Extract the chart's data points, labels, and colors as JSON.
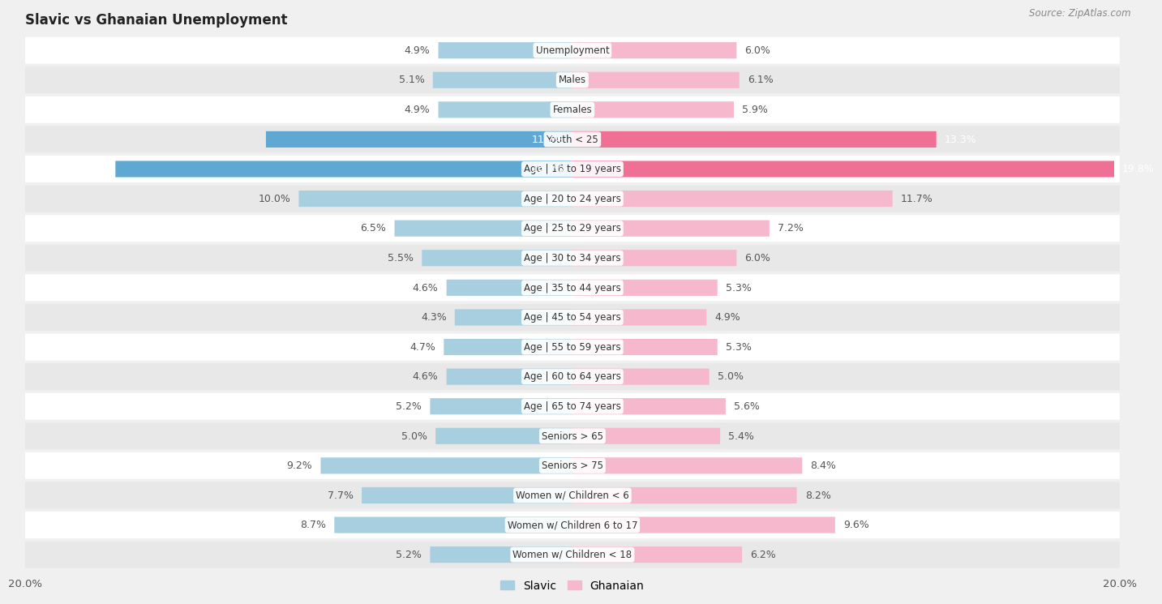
{
  "title": "Slavic vs Ghanaian Unemployment",
  "source": "Source: ZipAtlas.com",
  "categories": [
    "Unemployment",
    "Males",
    "Females",
    "Youth < 25",
    "Age | 16 to 19 years",
    "Age | 20 to 24 years",
    "Age | 25 to 29 years",
    "Age | 30 to 34 years",
    "Age | 35 to 44 years",
    "Age | 45 to 54 years",
    "Age | 55 to 59 years",
    "Age | 60 to 64 years",
    "Age | 65 to 74 years",
    "Seniors > 65",
    "Seniors > 75",
    "Women w/ Children < 6",
    "Women w/ Children 6 to 17",
    "Women w/ Children < 18"
  ],
  "slavic": [
    4.9,
    5.1,
    4.9,
    11.2,
    16.7,
    10.0,
    6.5,
    5.5,
    4.6,
    4.3,
    4.7,
    4.6,
    5.2,
    5.0,
    9.2,
    7.7,
    8.7,
    5.2
  ],
  "ghanaian": [
    6.0,
    6.1,
    5.9,
    13.3,
    19.8,
    11.7,
    7.2,
    6.0,
    5.3,
    4.9,
    5.3,
    5.0,
    5.6,
    5.4,
    8.4,
    8.2,
    9.6,
    6.2
  ],
  "slavic_color_normal": "#a8cfe0",
  "ghanaian_color_normal": "#f5b8cc",
  "slavic_color_highlight": "#5fa8d3",
  "ghanaian_color_highlight": "#f07095",
  "bg_color": "#f0f0f0",
  "row_color_odd": "#ffffff",
  "row_color_even": "#e8e8e8",
  "axis_limit": 20.0,
  "bar_height": 0.55,
  "label_fontsize": 9.0,
  "title_fontsize": 12,
  "source_fontsize": 8.5,
  "cat_fontsize": 8.5,
  "highlight_rows": [
    "Age | 16 to 19 years",
    "Youth < 25"
  ]
}
